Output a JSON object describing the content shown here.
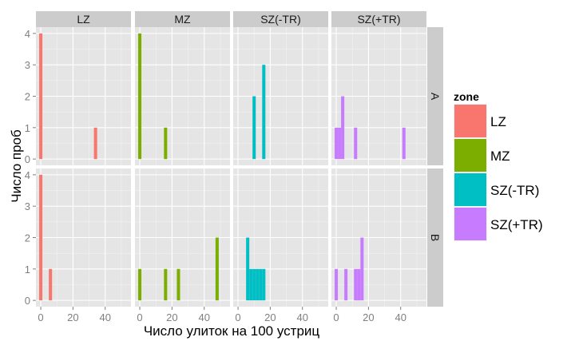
{
  "chart_data": {
    "type": "histogram",
    "xlabel": "Число улиток на 100 устриц",
    "ylabel": "Число проб",
    "col_facets": [
      "LZ",
      "MZ",
      "SZ(-TR)",
      "SZ(+TR)"
    ],
    "row_facets": [
      "A",
      "B"
    ],
    "x_ticks": [
      0,
      20,
      40
    ],
    "y_ticks": [
      0,
      1,
      2,
      3,
      4
    ],
    "xlim": [
      -3,
      56
    ],
    "ylim": [
      -0.2,
      4.2
    ],
    "bin_width": 2,
    "legend": {
      "title": "zone",
      "position": "right",
      "items": [
        {
          "label": "LZ",
          "color": "#F8766D"
        },
        {
          "label": "MZ",
          "color": "#7CAE00"
        },
        {
          "label": "SZ(-TR)",
          "color": "#00BFC4"
        },
        {
          "label": "SZ(+TR)",
          "color": "#C77CFF"
        }
      ]
    },
    "panels": [
      {
        "row": "A",
        "col": "LZ",
        "bins": [
          {
            "x": 0,
            "count": 4
          },
          {
            "x": 34,
            "count": 1
          }
        ]
      },
      {
        "row": "A",
        "col": "MZ",
        "bins": [
          {
            "x": 0,
            "count": 4
          },
          {
            "x": 16,
            "count": 1
          }
        ]
      },
      {
        "row": "A",
        "col": "SZ(-TR)",
        "bins": [
          {
            "x": 10,
            "count": 2
          },
          {
            "x": 16,
            "count": 3
          }
        ]
      },
      {
        "row": "A",
        "col": "SZ(+TR)",
        "bins": [
          {
            "x": 0,
            "count": 1
          },
          {
            "x": 2,
            "count": 1
          },
          {
            "x": 4,
            "count": 2
          },
          {
            "x": 12,
            "count": 1
          },
          {
            "x": 42,
            "count": 1
          }
        ]
      },
      {
        "row": "B",
        "col": "LZ",
        "bins": [
          {
            "x": 0,
            "count": 4
          },
          {
            "x": 6,
            "count": 1
          }
        ]
      },
      {
        "row": "B",
        "col": "MZ",
        "bins": [
          {
            "x": 0,
            "count": 1
          },
          {
            "x": 16,
            "count": 1
          },
          {
            "x": 24,
            "count": 1
          },
          {
            "x": 48,
            "count": 2
          }
        ]
      },
      {
        "row": "B",
        "col": "SZ(-TR)",
        "bins": [
          {
            "x": 6,
            "count": 2
          },
          {
            "x": 8,
            "count": 1
          },
          {
            "x": 10,
            "count": 1
          },
          {
            "x": 12,
            "count": 1
          },
          {
            "x": 14,
            "count": 1
          },
          {
            "x": 16,
            "count": 1
          }
        ]
      },
      {
        "row": "B",
        "col": "SZ(+TR)",
        "bins": [
          {
            "x": 0,
            "count": 1
          },
          {
            "x": 6,
            "count": 1
          },
          {
            "x": 12,
            "count": 1
          },
          {
            "x": 14,
            "count": 1
          },
          {
            "x": 16,
            "count": 2
          }
        ]
      }
    ]
  }
}
